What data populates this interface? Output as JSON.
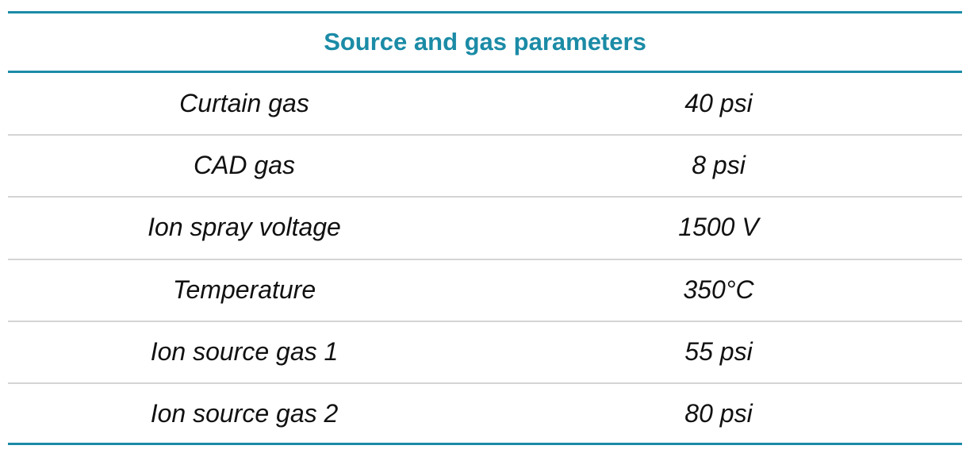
{
  "table": {
    "title": "Source and gas parameters",
    "rows": [
      [
        "Curtain gas",
        "40 psi"
      ],
      [
        "CAD gas",
        "8 psi"
      ],
      [
        "Ion spray voltage",
        "1500 V"
      ],
      [
        "Temperature",
        "350°C"
      ],
      [
        "Ion source gas 1",
        "55 psi"
      ],
      [
        "Ion source gas 2",
        "80 psi"
      ]
    ]
  }
}
